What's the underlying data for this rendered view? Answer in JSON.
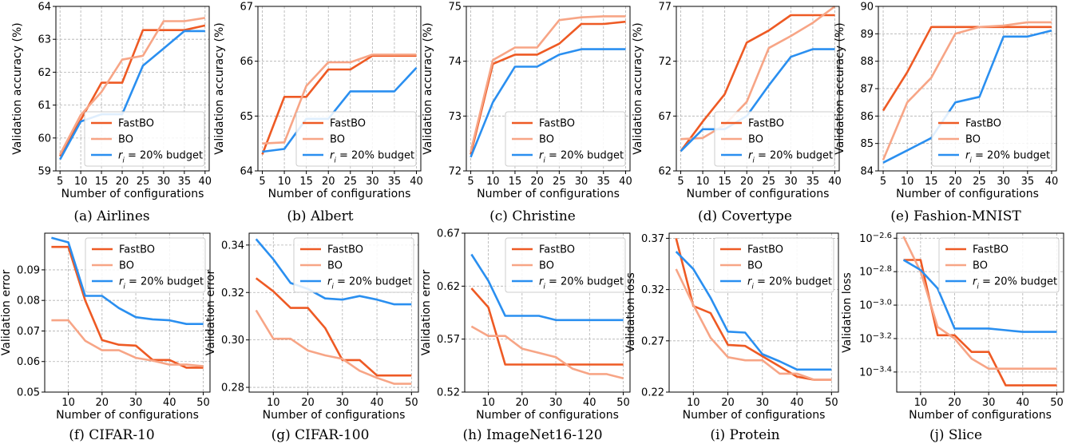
{
  "colors": {
    "FastBO": "#ee5a24",
    "BO": "#f7a586",
    "r20": "#2a8ff0"
  },
  "chart_data": [
    {
      "type": "line",
      "caption": "(a) Airlines",
      "xlabel": "Number of configurations",
      "ylabel": "Validation accuracy (%)",
      "xlim": [
        4,
        41
      ],
      "ylim": [
        59,
        64
      ],
      "xticks": [
        5,
        10,
        15,
        20,
        25,
        30,
        35,
        40
      ],
      "yticks": [
        59,
        60,
        61,
        62,
        63,
        64
      ],
      "legend": "lower-right",
      "grid": true,
      "series": [
        {
          "name": "FastBO",
          "color_key": "FastBO",
          "x": [
            5,
            10,
            15,
            20,
            25,
            30,
            35,
            40
          ],
          "y": [
            59.45,
            60.55,
            61.68,
            61.68,
            63.28,
            63.28,
            63.28,
            63.42
          ]
        },
        {
          "name": "BO",
          "color_key": "BO",
          "x": [
            5,
            10,
            15,
            20,
            25,
            30,
            35,
            40
          ],
          "y": [
            59.5,
            60.7,
            61.4,
            62.38,
            62.5,
            63.55,
            63.55,
            63.65
          ]
        },
        {
          "name": "r_i = 20% budget",
          "color_key": "r20",
          "x": [
            5,
            10,
            15,
            20,
            25,
            30,
            35,
            40
          ],
          "y": [
            59.35,
            60.5,
            60.72,
            60.72,
            62.2,
            62.72,
            63.25,
            63.25
          ]
        }
      ]
    },
    {
      "type": "line",
      "caption": "(b) Albert",
      "xlabel": "Number of configurations",
      "ylabel": "Validation accuracy (%)",
      "xlim": [
        4,
        41
      ],
      "ylim": [
        64,
        67
      ],
      "xticks": [
        5,
        10,
        15,
        20,
        25,
        30,
        35,
        40
      ],
      "yticks": [
        64,
        65,
        66,
        67
      ],
      "legend": "lower-right",
      "grid": true,
      "series": [
        {
          "name": "FastBO",
          "color_key": "FastBO",
          "x": [
            5,
            10,
            15,
            20,
            25,
            30,
            35,
            40
          ],
          "y": [
            64.3,
            65.35,
            65.35,
            65.85,
            65.85,
            66.1,
            66.1,
            66.1
          ]
        },
        {
          "name": "BO",
          "color_key": "BO",
          "x": [
            5,
            10,
            15,
            20,
            25,
            30,
            35,
            40
          ],
          "y": [
            64.5,
            64.52,
            65.55,
            65.98,
            65.98,
            66.12,
            66.12,
            66.12
          ]
        },
        {
          "name": "r_i = 20% budget",
          "color_key": "r20",
          "x": [
            5,
            10,
            15,
            20,
            25,
            30,
            35,
            40
          ],
          "y": [
            64.35,
            64.4,
            64.95,
            64.95,
            65.45,
            65.45,
            65.45,
            65.88
          ]
        }
      ]
    },
    {
      "type": "line",
      "caption": "(c) Christine",
      "xlabel": "Number of configurations",
      "ylabel": "Validation accuracy (%)",
      "xlim": [
        4,
        41
      ],
      "ylim": [
        72,
        75
      ],
      "xticks": [
        5,
        10,
        15,
        20,
        25,
        30,
        35,
        40
      ],
      "yticks": [
        72,
        73,
        74,
        75
      ],
      "legend": "lower-right",
      "grid": true,
      "series": [
        {
          "name": "FastBO",
          "color_key": "FastBO",
          "x": [
            5,
            10,
            15,
            20,
            25,
            30,
            35,
            40
          ],
          "y": [
            72.3,
            73.95,
            74.12,
            74.12,
            74.32,
            74.68,
            74.68,
            74.72
          ]
        },
        {
          "name": "BO",
          "color_key": "BO",
          "x": [
            5,
            10,
            15,
            20,
            25,
            30,
            35,
            40
          ],
          "y": [
            72.35,
            74.02,
            74.25,
            74.25,
            74.75,
            74.8,
            74.82,
            74.82
          ]
        },
        {
          "name": "r_i = 20% budget",
          "color_key": "r20",
          "x": [
            5,
            10,
            15,
            20,
            25,
            30,
            35,
            40
          ],
          "y": [
            72.25,
            73.25,
            73.9,
            73.9,
            74.12,
            74.22,
            74.22,
            74.22
          ]
        }
      ]
    },
    {
      "type": "line",
      "caption": "(d) Covertype",
      "xlabel": "Number of configurations",
      "ylabel": "Validation accuracy (%)",
      "xlim": [
        4,
        41
      ],
      "ylim": [
        62,
        77
      ],
      "xticks": [
        5,
        10,
        15,
        20,
        25,
        30,
        35,
        40
      ],
      "yticks": [
        62,
        67,
        72,
        77
      ],
      "legend": "lower-right",
      "grid": true,
      "series": [
        {
          "name": "FastBO",
          "color_key": "FastBO",
          "x": [
            5,
            10,
            15,
            20,
            25,
            30,
            35,
            40
          ],
          "y": [
            63.8,
            66.5,
            69.0,
            73.7,
            74.8,
            76.2,
            76.2,
            76.2
          ]
        },
        {
          "name": "BO",
          "color_key": "BO",
          "x": [
            5,
            10,
            15,
            20,
            25,
            30,
            35,
            40
          ],
          "y": [
            64.9,
            65.0,
            66.2,
            68.3,
            73.2,
            74.3,
            75.5,
            77.0
          ]
        },
        {
          "name": "r_i = 20% budget",
          "color_key": "r20",
          "x": [
            5,
            10,
            15,
            20,
            25,
            30,
            35,
            40
          ],
          "y": [
            63.8,
            65.8,
            65.8,
            67.0,
            69.8,
            72.4,
            73.1,
            73.1
          ]
        }
      ]
    },
    {
      "type": "line",
      "caption": "(e) Fashion-MNIST",
      "xlabel": "Number of configurations",
      "ylabel": "Validation accuracy (%)",
      "xlim": [
        4,
        41
      ],
      "ylim": [
        84,
        90
      ],
      "xticks": [
        5,
        10,
        15,
        20,
        25,
        30,
        35,
        40
      ],
      "yticks": [
        84,
        85,
        86,
        87,
        88,
        89,
        90
      ],
      "legend": "lower-right",
      "grid": true,
      "series": [
        {
          "name": "FastBO",
          "color_key": "FastBO",
          "x": [
            5,
            10,
            15,
            20,
            25,
            30,
            35,
            40
          ],
          "y": [
            86.2,
            87.6,
            89.25,
            89.25,
            89.25,
            89.25,
            89.25,
            89.25
          ]
        },
        {
          "name": "BO",
          "color_key": "BO",
          "x": [
            5,
            10,
            15,
            20,
            25,
            30,
            35,
            40
          ],
          "y": [
            84.4,
            86.5,
            87.4,
            89.0,
            89.25,
            89.3,
            89.42,
            89.42
          ]
        },
        {
          "name": "r_i = 20% budget",
          "color_key": "r20",
          "x": [
            5,
            10,
            15,
            20,
            25,
            30,
            35,
            40
          ],
          "y": [
            84.3,
            84.75,
            85.2,
            86.5,
            86.7,
            88.9,
            88.9,
            89.12
          ]
        }
      ]
    },
    {
      "type": "line",
      "caption": "(f) CIFAR-10",
      "xlabel": "Number of configurations",
      "ylabel": "Validation error",
      "xlim": [
        3,
        52
      ],
      "ylim": [
        0.05,
        0.102
      ],
      "xticks": [
        10,
        20,
        30,
        40,
        50
      ],
      "yticks": [
        0.05,
        0.06,
        0.07,
        0.08,
        0.09
      ],
      "legend": "upper-right",
      "grid": true,
      "series": [
        {
          "name": "FastBO",
          "color_key": "FastBO",
          "x": [
            5,
            10,
            15,
            20,
            25,
            30,
            35,
            40,
            45,
            50
          ],
          "y": [
            0.0975,
            0.0975,
            0.08,
            0.067,
            0.0655,
            0.0652,
            0.0605,
            0.0605,
            0.058,
            0.058
          ]
        },
        {
          "name": "BO",
          "color_key": "BO",
          "x": [
            5,
            10,
            15,
            20,
            25,
            30,
            35,
            40,
            45,
            50
          ],
          "y": [
            0.0735,
            0.0735,
            0.0668,
            0.0637,
            0.0637,
            0.0612,
            0.0603,
            0.059,
            0.059,
            0.0585
          ]
        },
        {
          "name": "r_i = 20% budget",
          "color_key": "r20",
          "x": [
            5,
            10,
            15,
            20,
            25,
            30,
            35,
            40,
            45,
            50
          ],
          "y": [
            0.1005,
            0.099,
            0.0815,
            0.0815,
            0.0775,
            0.0745,
            0.0738,
            0.0735,
            0.0723,
            0.0723
          ]
        }
      ]
    },
    {
      "type": "line",
      "caption": "(g) CIFAR-100",
      "xlabel": "Number of configurations",
      "ylabel": "Validation error",
      "xlim": [
        3,
        52
      ],
      "ylim": [
        0.278,
        0.345
      ],
      "xticks": [
        10,
        20,
        30,
        40,
        50
      ],
      "yticks": [
        0.28,
        0.3,
        0.32,
        0.34
      ],
      "ytick_labels": [
        "0.28",
        "0.30",
        "0.32",
        "0.34"
      ],
      "legend": "upper-right",
      "grid": true,
      "series": [
        {
          "name": "FastBO",
          "color_key": "FastBO",
          "x": [
            5,
            10,
            15,
            20,
            25,
            30,
            35,
            40,
            45,
            50
          ],
          "y": [
            0.326,
            0.3205,
            0.3135,
            0.3135,
            0.305,
            0.2915,
            0.2915,
            0.285,
            0.285,
            0.285
          ]
        },
        {
          "name": "BO",
          "color_key": "BO",
          "x": [
            5,
            10,
            15,
            20,
            25,
            30,
            35,
            40,
            45,
            50
          ],
          "y": [
            0.3125,
            0.3005,
            0.3005,
            0.2955,
            0.2935,
            0.292,
            0.287,
            0.284,
            0.2815,
            0.2815
          ]
        },
        {
          "name": "r_i = 20% budget",
          "color_key": "r20",
          "x": [
            5,
            10,
            15,
            20,
            25,
            30,
            35,
            40,
            45,
            50
          ],
          "y": [
            0.3425,
            0.334,
            0.324,
            0.3215,
            0.3175,
            0.317,
            0.3185,
            0.317,
            0.315,
            0.315
          ]
        }
      ]
    },
    {
      "type": "line",
      "caption": "(h) ImageNet16-120",
      "xlabel": "Number of configurations",
      "ylabel": "Validation error",
      "xlim": [
        3,
        52
      ],
      "ylim": [
        0.52,
        0.67
      ],
      "xticks": [
        10,
        20,
        30,
        40,
        50
      ],
      "yticks": [
        0.52,
        0.57,
        0.62,
        0.67
      ],
      "legend": "upper-right",
      "grid": true,
      "series": [
        {
          "name": "FastBO",
          "color_key": "FastBO",
          "x": [
            5,
            10,
            15,
            20,
            25,
            30,
            35,
            40,
            45,
            50
          ],
          "y": [
            0.618,
            0.6,
            0.546,
            0.546,
            0.546,
            0.546,
            0.546,
            0.546,
            0.546,
            0.546
          ]
        },
        {
          "name": "BO",
          "color_key": "BO",
          "x": [
            5,
            10,
            15,
            20,
            25,
            30,
            35,
            40,
            45,
            50
          ],
          "y": [
            0.582,
            0.573,
            0.573,
            0.561,
            0.557,
            0.553,
            0.542,
            0.537,
            0.537,
            0.533
          ]
        },
        {
          "name": "r_i = 20% budget",
          "color_key": "r20",
          "x": [
            5,
            10,
            15,
            20,
            25,
            30,
            35,
            40,
            45,
            50
          ],
          "y": [
            0.65,
            0.625,
            0.592,
            0.592,
            0.592,
            0.588,
            0.588,
            0.588,
            0.588,
            0.588
          ]
        }
      ]
    },
    {
      "type": "line",
      "caption": "(i) Protein",
      "xlabel": "Number of configurations",
      "ylabel": "Validation loss",
      "xlim": [
        3,
        52
      ],
      "ylim": [
        0.22,
        0.375
      ],
      "xticks": [
        10,
        20,
        30,
        40,
        50
      ],
      "yticks": [
        0.22,
        0.27,
        0.32,
        0.37
      ],
      "legend": "upper-right",
      "grid": true,
      "series": [
        {
          "name": "FastBO",
          "color_key": "FastBO",
          "x": [
            5,
            10,
            15,
            20,
            25,
            30,
            35,
            40,
            45,
            50
          ],
          "y": [
            0.37,
            0.304,
            0.297,
            0.266,
            0.265,
            0.255,
            0.245,
            0.235,
            0.232,
            0.232
          ]
        },
        {
          "name": "BO",
          "color_key": "BO",
          "x": [
            5,
            10,
            15,
            20,
            25,
            30,
            35,
            40,
            45,
            50
          ],
          "y": [
            0.34,
            0.305,
            0.273,
            0.254,
            0.251,
            0.251,
            0.238,
            0.238,
            0.232,
            0.232
          ]
        },
        {
          "name": "r_i = 20% budget",
          "color_key": "r20",
          "x": [
            5,
            10,
            15,
            20,
            25,
            30,
            35,
            40,
            45,
            50
          ],
          "y": [
            0.357,
            0.34,
            0.312,
            0.279,
            0.278,
            0.257,
            0.25,
            0.242,
            0.242,
            0.242
          ]
        }
      ]
    },
    {
      "type": "line",
      "caption": "(j) Slice",
      "xlabel": "Number of configurations",
      "ylabel": "Validation loss",
      "xlim": [
        3,
        52
      ],
      "ylim": [
        -3.52,
        -2.57
      ],
      "log_scale_y": true,
      "xticks": [
        10,
        20,
        30,
        40,
        50
      ],
      "yticks": [
        -3.4,
        -3.2,
        -3.0,
        -2.8,
        -2.6
      ],
      "ytick_labels": [
        "10^−3.4",
        "10^−3.2",
        "10^−3.0",
        "10^−2.8",
        "10^−2.6"
      ],
      "legend": "upper-right",
      "grid": true,
      "series": [
        {
          "name": "FastBO",
          "color_key": "FastBO",
          "x": [
            5,
            10,
            15,
            20,
            25,
            30,
            35,
            40,
            45,
            50
          ],
          "y": [
            -2.73,
            -2.73,
            -3.18,
            -3.18,
            -3.28,
            -3.28,
            -3.48,
            -3.48,
            -3.48,
            -3.48
          ]
        },
        {
          "name": "BO",
          "color_key": "BO",
          "x": [
            5,
            10,
            15,
            20,
            25,
            30,
            35,
            40,
            45,
            50
          ],
          "y": [
            -2.59,
            -2.8,
            -3.13,
            -3.2,
            -3.32,
            -3.38,
            -3.38,
            -3.38,
            -3.38,
            -3.38
          ]
        },
        {
          "name": "r_i = 20% budget",
          "color_key": "r20",
          "x": [
            5,
            10,
            15,
            20,
            25,
            30,
            35,
            40,
            45,
            50
          ],
          "y": [
            -2.73,
            -2.79,
            -2.9,
            -3.14,
            -3.14,
            -3.14,
            -3.15,
            -3.16,
            -3.16,
            -3.16
          ]
        }
      ]
    }
  ]
}
